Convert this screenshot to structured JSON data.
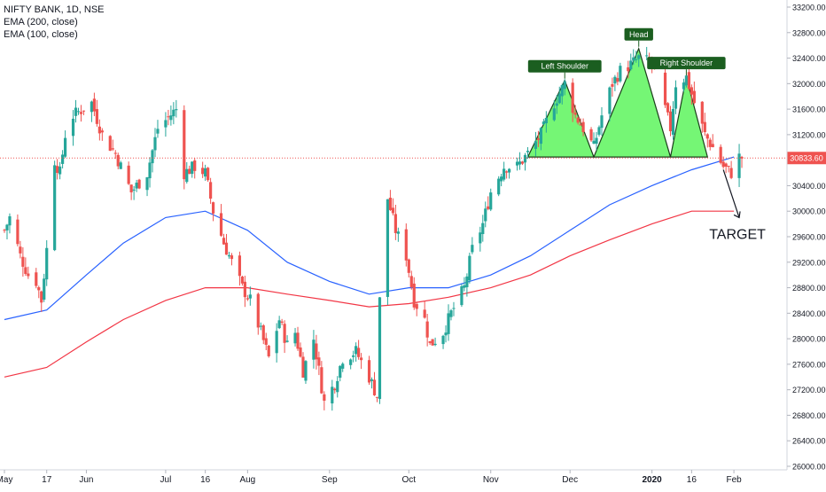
{
  "legend": {
    "symbol_line": "NIFTY BANK, 1D, NSE",
    "indicator_1": "EMA (200, close)",
    "indicator_2": "EMA (100, close)"
  },
  "colors": {
    "up": "#26a69a",
    "down": "#ef5350",
    "ema_blue": "#2962ff",
    "ema_red": "#f23645",
    "pattern_fill": "#5df55d",
    "label_bg": "#1b5e20",
    "price_tag": "#ef5350"
  },
  "chart_data": {
    "type": "candlestick",
    "title": "NIFTY BANK, 1D, NSE",
    "y_axis": {
      "ylim": [
        26000,
        33200
      ],
      "ticks": [
        "33200.00",
        "32800.00",
        "32400.00",
        "32000.00",
        "31600.00",
        "31200.00",
        "30400.00",
        "30000.00",
        "29600.00",
        "29200.00",
        "28800.00",
        "28400.00",
        "28000.00",
        "27600.00",
        "27200.00",
        "26800.00",
        "26400.00",
        "26000.00"
      ]
    },
    "x_axis": {
      "start": "2019-05-01",
      "end": "2020-02-06",
      "ticks": [
        {
          "label": "May",
          "date": "2019-05-01"
        },
        {
          "label": "17",
          "date": "2019-05-17"
        },
        {
          "label": "Jun",
          "date": "2019-06-01"
        },
        {
          "label": "Jul",
          "date": "2019-07-01"
        },
        {
          "label": "16",
          "date": "2019-07-16"
        },
        {
          "label": "Aug",
          "date": "2019-08-01"
        },
        {
          "label": "Sep",
          "date": "2019-09-01"
        },
        {
          "label": "Oct",
          "date": "2019-10-01"
        },
        {
          "label": "Nov",
          "date": "2019-11-01"
        },
        {
          "label": "Dec",
          "date": "2019-12-01"
        },
        {
          "label": "2020",
          "date": "2020-01-01"
        },
        {
          "label": "16",
          "date": "2020-01-16"
        },
        {
          "label": "Feb",
          "date": "2020-02-01"
        }
      ]
    },
    "last_price": 30833.6,
    "last_price_label": "30833.60",
    "anchors": [
      [
        "2019-05-01",
        29700
      ],
      [
        "2019-05-03",
        29900
      ],
      [
        "2019-05-07",
        29300
      ],
      [
        "2019-05-10",
        29000
      ],
      [
        "2019-05-13",
        28900
      ],
      [
        "2019-05-15",
        28600
      ],
      [
        "2019-05-17",
        29400
      ],
      [
        "2019-05-20",
        30800
      ],
      [
        "2019-05-22",
        30600
      ],
      [
        "2019-05-24",
        31200
      ],
      [
        "2019-05-27",
        31500
      ],
      [
        "2019-06-03",
        31700
      ],
      [
        "2019-06-07",
        31200
      ],
      [
        "2019-06-12",
        30900
      ],
      [
        "2019-06-18",
        30300
      ],
      [
        "2019-06-24",
        30600
      ],
      [
        "2019-06-28",
        31300
      ],
      [
        "2019-07-05",
        31600
      ],
      [
        "2019-07-08",
        30600
      ],
      [
        "2019-07-12",
        30700
      ],
      [
        "2019-07-16",
        30600
      ],
      [
        "2019-07-19",
        30000
      ],
      [
        "2019-07-23",
        29500
      ],
      [
        "2019-07-26",
        29200
      ],
      [
        "2019-07-30",
        28800
      ],
      [
        "2019-08-02",
        28600
      ],
      [
        "2019-08-06",
        28100
      ],
      [
        "2019-08-09",
        27700
      ],
      [
        "2019-08-13",
        28300
      ],
      [
        "2019-08-16",
        27900
      ],
      [
        "2019-08-19",
        28100
      ],
      [
        "2019-08-22",
        27500
      ],
      [
        "2019-08-26",
        28000
      ],
      [
        "2019-08-30",
        27000
      ],
      [
        "2019-09-03",
        27300
      ],
      [
        "2019-09-06",
        27700
      ],
      [
        "2019-09-11",
        27800
      ],
      [
        "2019-09-16",
        27400
      ],
      [
        "2019-09-19",
        27100
      ],
      [
        "2019-09-20",
        28600
      ],
      [
        "2019-09-23",
        30200
      ],
      [
        "2019-09-26",
        29700
      ],
      [
        "2019-09-30",
        29300
      ],
      [
        "2019-10-03",
        28600
      ],
      [
        "2019-10-07",
        28300
      ],
      [
        "2019-10-09",
        27900
      ],
      [
        "2019-10-14",
        28100
      ],
      [
        "2019-10-17",
        28400
      ],
      [
        "2019-10-22",
        28800
      ],
      [
        "2019-10-25",
        29400
      ],
      [
        "2019-10-29",
        29800
      ],
      [
        "2019-11-01",
        30300
      ],
      [
        "2019-11-06",
        30700
      ],
      [
        "2019-11-11",
        30700
      ],
      [
        "2019-11-15",
        30900
      ],
      [
        "2019-11-20",
        31200
      ],
      [
        "2019-11-25",
        31700
      ],
      [
        "2019-11-29",
        32000
      ],
      [
        "2019-12-03",
        31500
      ],
      [
        "2019-12-06",
        31300
      ],
      [
        "2019-12-10",
        31000
      ],
      [
        "2019-12-13",
        31500
      ],
      [
        "2019-12-17",
        32000
      ],
      [
        "2019-12-20",
        32200
      ],
      [
        "2019-12-24",
        32300
      ],
      [
        "2019-12-27",
        32400
      ],
      [
        "2020-01-02",
        32300
      ],
      [
        "2020-01-06",
        31600
      ],
      [
        "2020-01-08",
        31300
      ],
      [
        "2020-01-10",
        32000
      ],
      [
        "2020-01-14",
        32100
      ],
      [
        "2020-01-17",
        31700
      ],
      [
        "2020-01-21",
        31200
      ],
      [
        "2020-01-24",
        31000
      ],
      [
        "2020-01-28",
        30700
      ],
      [
        "2020-01-31",
        30600
      ],
      [
        "2020-02-03",
        30850
      ],
      [
        "2020-02-05",
        30833
      ]
    ],
    "ema_200": [
      [
        "2019-05-01",
        28300
      ],
      [
        "2019-05-17",
        28450
      ],
      [
        "2019-06-01",
        29000
      ],
      [
        "2019-06-15",
        29500
      ],
      [
        "2019-07-01",
        29900
      ],
      [
        "2019-07-16",
        30000
      ],
      [
        "2019-08-01",
        29700
      ],
      [
        "2019-08-16",
        29200
      ],
      [
        "2019-09-01",
        28900
      ],
      [
        "2019-09-16",
        28700
      ],
      [
        "2019-10-01",
        28800
      ],
      [
        "2019-10-16",
        28800
      ],
      [
        "2019-11-01",
        29000
      ],
      [
        "2019-11-16",
        29300
      ],
      [
        "2019-12-01",
        29700
      ],
      [
        "2019-12-16",
        30100
      ],
      [
        "2020-01-01",
        30400
      ],
      [
        "2020-01-16",
        30650
      ],
      [
        "2020-02-01",
        30850
      ]
    ],
    "ema_100": [
      [
        "2019-05-01",
        27400
      ],
      [
        "2019-05-17",
        27550
      ],
      [
        "2019-06-01",
        27950
      ],
      [
        "2019-06-15",
        28300
      ],
      [
        "2019-07-01",
        28600
      ],
      [
        "2019-07-16",
        28800
      ],
      [
        "2019-08-01",
        28800
      ],
      [
        "2019-08-16",
        28700
      ],
      [
        "2019-09-01",
        28600
      ],
      [
        "2019-09-16",
        28500
      ],
      [
        "2019-10-01",
        28550
      ],
      [
        "2019-10-16",
        28650
      ],
      [
        "2019-11-01",
        28800
      ],
      [
        "2019-11-16",
        29000
      ],
      [
        "2019-12-01",
        29300
      ],
      [
        "2019-12-16",
        29550
      ],
      [
        "2020-01-01",
        29800
      ],
      [
        "2020-01-16",
        30000
      ],
      [
        "2020-02-01",
        30000
      ]
    ],
    "pattern": {
      "points": [
        [
          "2019-11-15",
          30850
        ],
        [
          "2019-11-29",
          32050
        ],
        [
          "2019-12-10",
          30850
        ],
        [
          "2019-12-27",
          32550
        ],
        [
          "2020-01-08",
          30850
        ],
        [
          "2020-01-14",
          32100
        ],
        [
          "2020-01-22",
          30850
        ]
      ],
      "labels": [
        {
          "text": "Left Shoulder",
          "date": "2019-11-29",
          "price": 32050
        },
        {
          "text": "Head",
          "date": "2019-12-27",
          "price": 32550
        },
        {
          "text": "Right Shoulder",
          "date": "2020-01-14",
          "price": 32100
        }
      ]
    },
    "target": {
      "text": "TARGET",
      "from": [
        "2020-01-28",
        30650
      ],
      "to": [
        "2020-02-03",
        29900
      ]
    }
  }
}
